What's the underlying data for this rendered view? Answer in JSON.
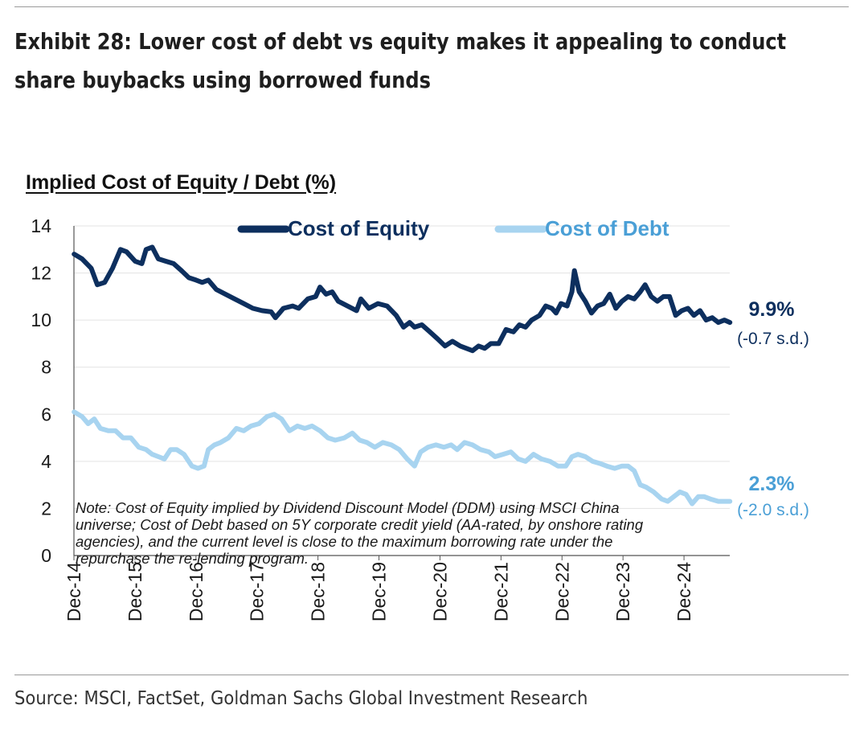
{
  "header": {
    "title": "Exhibit 28: Lower cost of debt vs equity makes it appealing to conduct share buybacks using borrowed funds"
  },
  "footer": {
    "source": "Source: MSCI, FactSet, Goldman Sachs Global Investment Research"
  },
  "colors": {
    "equity": "#0d2f5e",
    "debt": "#a8d4f0",
    "debt_label": "#4a9fd6"
  },
  "chart_data": {
    "type": "line",
    "title": "Implied Cost of Equity / Debt (%)",
    "xlabel": "",
    "ylabel": "",
    "ylim": [
      0,
      14
    ],
    "xlim": [
      2014.917,
      2025.667
    ],
    "yticks": [
      0,
      2,
      4,
      6,
      8,
      10,
      12,
      14
    ],
    "xticks": [
      {
        "label": "Dec-14",
        "x": 2014.917
      },
      {
        "label": "Dec-15",
        "x": 2015.917
      },
      {
        "label": "Dec-16",
        "x": 2016.917
      },
      {
        "label": "Dec-17",
        "x": 2017.917
      },
      {
        "label": "Dec-18",
        "x": 2018.917
      },
      {
        "label": "Dec-19",
        "x": 2019.917
      },
      {
        "label": "Dec-20",
        "x": 2020.917
      },
      {
        "label": "Dec-21",
        "x": 2021.917
      },
      {
        "label": "Dec-22",
        "x": 2022.917
      },
      {
        "label": "Dec-23",
        "x": 2023.917
      },
      {
        "label": "Dec-24",
        "x": 2024.917
      }
    ],
    "grid": true,
    "legend": "top",
    "series": [
      {
        "name": "Cost of Equity",
        "end_label": "9.9%",
        "end_sd": "(-0.7 s.d.)",
        "points": [
          [
            2014.92,
            12.8
          ],
          [
            2015.05,
            12.6
          ],
          [
            2015.2,
            12.2
          ],
          [
            2015.3,
            11.5
          ],
          [
            2015.42,
            11.6
          ],
          [
            2015.55,
            12.2
          ],
          [
            2015.68,
            13.0
          ],
          [
            2015.78,
            12.9
          ],
          [
            2015.92,
            12.5
          ],
          [
            2016.03,
            12.4
          ],
          [
            2016.1,
            13.0
          ],
          [
            2016.2,
            13.1
          ],
          [
            2016.3,
            12.6
          ],
          [
            2016.42,
            12.5
          ],
          [
            2016.55,
            12.4
          ],
          [
            2016.68,
            12.1
          ],
          [
            2016.8,
            11.8
          ],
          [
            2016.92,
            11.7
          ],
          [
            2017.02,
            11.6
          ],
          [
            2017.12,
            11.7
          ],
          [
            2017.25,
            11.3
          ],
          [
            2017.4,
            11.1
          ],
          [
            2017.55,
            10.9
          ],
          [
            2017.7,
            10.7
          ],
          [
            2017.85,
            10.5
          ],
          [
            2018.0,
            10.4
          ],
          [
            2018.15,
            10.35
          ],
          [
            2018.22,
            10.1
          ],
          [
            2018.35,
            10.5
          ],
          [
            2018.5,
            10.6
          ],
          [
            2018.6,
            10.5
          ],
          [
            2018.75,
            10.9
          ],
          [
            2018.88,
            11.0
          ],
          [
            2018.95,
            11.4
          ],
          [
            2019.05,
            11.1
          ],
          [
            2019.15,
            11.2
          ],
          [
            2019.25,
            10.8
          ],
          [
            2019.4,
            10.6
          ],
          [
            2019.55,
            10.4
          ],
          [
            2019.62,
            10.9
          ],
          [
            2019.75,
            10.5
          ],
          [
            2019.9,
            10.7
          ],
          [
            2020.05,
            10.6
          ],
          [
            2020.2,
            10.2
          ],
          [
            2020.32,
            9.7
          ],
          [
            2020.42,
            9.9
          ],
          [
            2020.5,
            9.7
          ],
          [
            2020.62,
            9.8
          ],
          [
            2020.75,
            9.5
          ],
          [
            2020.88,
            9.2
          ],
          [
            2021.0,
            8.9
          ],
          [
            2021.12,
            9.1
          ],
          [
            2021.25,
            8.9
          ],
          [
            2021.35,
            8.8
          ],
          [
            2021.45,
            8.7
          ],
          [
            2021.55,
            8.9
          ],
          [
            2021.65,
            8.8
          ],
          [
            2021.75,
            9.0
          ],
          [
            2021.88,
            9.0
          ],
          [
            2022.0,
            9.6
          ],
          [
            2022.12,
            9.5
          ],
          [
            2022.22,
            9.8
          ],
          [
            2022.32,
            9.7
          ],
          [
            2022.42,
            10.0
          ],
          [
            2022.55,
            10.2
          ],
          [
            2022.65,
            10.6
          ],
          [
            2022.75,
            10.5
          ],
          [
            2022.82,
            10.3
          ],
          [
            2022.9,
            10.7
          ],
          [
            2023.0,
            10.6
          ],
          [
            2023.08,
            11.2
          ],
          [
            2023.12,
            12.1
          ],
          [
            2023.2,
            11.2
          ],
          [
            2023.3,
            10.8
          ],
          [
            2023.4,
            10.3
          ],
          [
            2023.5,
            10.6
          ],
          [
            2023.6,
            10.7
          ],
          [
            2023.7,
            11.1
          ],
          [
            2023.8,
            10.5
          ],
          [
            2023.9,
            10.8
          ],
          [
            2024.0,
            11.0
          ],
          [
            2024.1,
            10.9
          ],
          [
            2024.2,
            11.2
          ],
          [
            2024.28,
            11.5
          ],
          [
            2024.38,
            11.0
          ],
          [
            2024.48,
            10.8
          ],
          [
            2024.58,
            11.0
          ],
          [
            2024.68,
            11.0
          ],
          [
            2024.78,
            10.2
          ],
          [
            2024.88,
            10.4
          ],
          [
            2024.98,
            10.5
          ],
          [
            2025.08,
            10.2
          ],
          [
            2025.18,
            10.4
          ],
          [
            2025.28,
            10.0
          ],
          [
            2025.38,
            10.1
          ],
          [
            2025.48,
            9.9
          ],
          [
            2025.58,
            10.0
          ],
          [
            2025.67,
            9.9
          ]
        ]
      },
      {
        "name": "Cost of Debt",
        "end_label": "2.3%",
        "end_sd": "(-2.0 s.d.)",
        "points": [
          [
            2014.92,
            6.1
          ],
          [
            2015.05,
            5.9
          ],
          [
            2015.15,
            5.6
          ],
          [
            2015.25,
            5.8
          ],
          [
            2015.35,
            5.4
          ],
          [
            2015.48,
            5.3
          ],
          [
            2015.6,
            5.3
          ],
          [
            2015.72,
            5.0
          ],
          [
            2015.85,
            5.0
          ],
          [
            2015.98,
            4.6
          ],
          [
            2016.1,
            4.5
          ],
          [
            2016.2,
            4.3
          ],
          [
            2016.3,
            4.2
          ],
          [
            2016.4,
            4.1
          ],
          [
            2016.5,
            4.5
          ],
          [
            2016.6,
            4.5
          ],
          [
            2016.72,
            4.3
          ],
          [
            2016.85,
            3.8
          ],
          [
            2016.95,
            3.7
          ],
          [
            2017.05,
            3.8
          ],
          [
            2017.12,
            4.5
          ],
          [
            2017.22,
            4.7
          ],
          [
            2017.32,
            4.8
          ],
          [
            2017.45,
            5.0
          ],
          [
            2017.58,
            5.4
          ],
          [
            2017.7,
            5.3
          ],
          [
            2017.82,
            5.5
          ],
          [
            2017.95,
            5.6
          ],
          [
            2018.08,
            5.9
          ],
          [
            2018.2,
            6.0
          ],
          [
            2018.32,
            5.8
          ],
          [
            2018.45,
            5.3
          ],
          [
            2018.58,
            5.5
          ],
          [
            2018.7,
            5.4
          ],
          [
            2018.82,
            5.5
          ],
          [
            2018.95,
            5.3
          ],
          [
            2019.08,
            5.0
          ],
          [
            2019.2,
            4.9
          ],
          [
            2019.35,
            5.0
          ],
          [
            2019.48,
            5.2
          ],
          [
            2019.6,
            4.9
          ],
          [
            2019.72,
            4.8
          ],
          [
            2019.85,
            4.6
          ],
          [
            2019.98,
            4.8
          ],
          [
            2020.12,
            4.7
          ],
          [
            2020.25,
            4.5
          ],
          [
            2020.38,
            4.1
          ],
          [
            2020.5,
            3.8
          ],
          [
            2020.6,
            4.4
          ],
          [
            2020.72,
            4.6
          ],
          [
            2020.85,
            4.7
          ],
          [
            2020.98,
            4.6
          ],
          [
            2021.1,
            4.7
          ],
          [
            2021.2,
            4.5
          ],
          [
            2021.32,
            4.8
          ],
          [
            2021.45,
            4.7
          ],
          [
            2021.58,
            4.5
          ],
          [
            2021.72,
            4.4
          ],
          [
            2021.82,
            4.2
          ],
          [
            2021.95,
            4.3
          ],
          [
            2022.08,
            4.4
          ],
          [
            2022.2,
            4.1
          ],
          [
            2022.32,
            4.0
          ],
          [
            2022.45,
            4.3
          ],
          [
            2022.58,
            4.1
          ],
          [
            2022.72,
            4.0
          ],
          [
            2022.85,
            3.8
          ],
          [
            2022.98,
            3.8
          ],
          [
            2023.08,
            4.2
          ],
          [
            2023.18,
            4.3
          ],
          [
            2023.3,
            4.2
          ],
          [
            2023.42,
            4.0
          ],
          [
            2023.55,
            3.9
          ],
          [
            2023.65,
            3.8
          ],
          [
            2023.78,
            3.7
          ],
          [
            2023.9,
            3.8
          ],
          [
            2024.0,
            3.8
          ],
          [
            2024.1,
            3.6
          ],
          [
            2024.2,
            3.0
          ],
          [
            2024.3,
            2.9
          ],
          [
            2024.42,
            2.7
          ],
          [
            2024.55,
            2.4
          ],
          [
            2024.65,
            2.3
          ],
          [
            2024.75,
            2.5
          ],
          [
            2024.85,
            2.7
          ],
          [
            2024.95,
            2.6
          ],
          [
            2025.05,
            2.2
          ],
          [
            2025.15,
            2.5
          ],
          [
            2025.25,
            2.5
          ],
          [
            2025.35,
            2.4
          ],
          [
            2025.48,
            2.3
          ],
          [
            2025.58,
            2.3
          ],
          [
            2025.67,
            2.3
          ]
        ]
      }
    ],
    "annotations": {
      "note_lines": [
        "Note: Cost of Equity implied by Dividend Discount Model (DDM) using MSCI China",
        "universe; Cost of Debt based on 5Y corporate credit yield (AA-rated, by onshore rating",
        "agencies), and the current level is close to the maximum borrowing rate under the",
        "repurchase the re-lending program."
      ]
    }
  }
}
